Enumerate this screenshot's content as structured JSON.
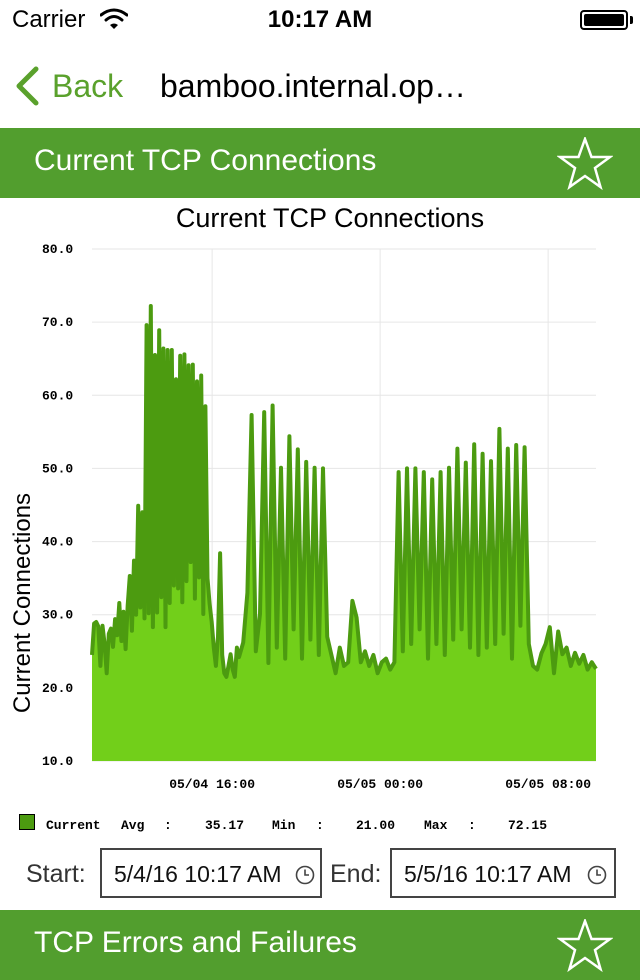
{
  "status": {
    "carrier": "Carrier",
    "time": "10:17 AM"
  },
  "nav": {
    "back_label": "Back",
    "title": "bamboo.internal.op…"
  },
  "section1": {
    "title": "Current TCP Connections"
  },
  "section2": {
    "title": "TCP Errors and Failures"
  },
  "chart_data": {
    "type": "area",
    "title": "Current TCP Connections",
    "xlabel": "",
    "ylabel": "Current Connections",
    "ylim": [
      10,
      80
    ],
    "yticks": [
      10,
      20,
      30,
      40,
      50,
      60,
      70,
      80
    ],
    "ytick_labels": [
      "10.0",
      "20.0",
      "30.0",
      "40.0",
      "50.0",
      "60.0",
      "70.0",
      "80.0"
    ],
    "xlim": [
      "05/04 10:17",
      "05/05 10:17"
    ],
    "xticks": [
      {
        "label": "05/04 16:00",
        "hours": 5.72
      },
      {
        "label": "05/05 00:00",
        "hours": 13.72
      },
      {
        "label": "05/05 08:00",
        "hours": 21.72
      }
    ],
    "grid": true,
    "colors": {
      "fill": "#72cf1a",
      "line": "#4c9b10",
      "grid": "#e6e6e6"
    },
    "series": [
      {
        "name": "Current",
        "x_hours": [
          0.0,
          0.1,
          0.2,
          0.3,
          0.4,
          0.5,
          0.6,
          0.7,
          0.8,
          0.9,
          1.0,
          1.1,
          1.2,
          1.3,
          1.4,
          1.5,
          1.6,
          1.7,
          1.8,
          1.9,
          2.0,
          2.1,
          2.2,
          2.3,
          2.4,
          2.5,
          2.6,
          2.7,
          2.8,
          2.9,
          3.0,
          3.1,
          3.2,
          3.3,
          3.4,
          3.5,
          3.6,
          3.7,
          3.8,
          3.9,
          4.0,
          4.1,
          4.2,
          4.3,
          4.4,
          4.5,
          4.6,
          4.7,
          4.8,
          4.9,
          5.0,
          5.1,
          5.2,
          5.3,
          5.4,
          5.5,
          5.6,
          5.7,
          5.8,
          5.9,
          6.0,
          6.1,
          6.2,
          6.3,
          6.4,
          6.5,
          6.6,
          6.7,
          6.8,
          6.9,
          7.0,
          7.2,
          7.4,
          7.6,
          7.8,
          8.0,
          8.2,
          8.4,
          8.6,
          8.8,
          9.0,
          9.2,
          9.4,
          9.6,
          9.8,
          10.0,
          10.2,
          10.4,
          10.6,
          10.8,
          11.0,
          11.2,
          11.4,
          11.6,
          11.8,
          12.0,
          12.2,
          12.4,
          12.6,
          12.8,
          13.0,
          13.2,
          13.4,
          13.6,
          13.8,
          14.0,
          14.2,
          14.4,
          14.6,
          14.8,
          15.0,
          15.2,
          15.4,
          15.6,
          15.8,
          16.0,
          16.2,
          16.4,
          16.6,
          16.8,
          17.0,
          17.2,
          17.4,
          17.6,
          17.8,
          18.0,
          18.2,
          18.4,
          18.6,
          18.8,
          19.0,
          19.2,
          19.4,
          19.6,
          19.8,
          20.0,
          20.2,
          20.4,
          20.6,
          20.8,
          21.0,
          21.2,
          21.4,
          21.6,
          21.8,
          22.0,
          22.2,
          22.4,
          22.6,
          22.8,
          23.0,
          23.2,
          23.4,
          23.6,
          23.8,
          24.0
        ],
        "values": [
          24.5,
          28.8,
          29.0,
          28.4,
          23.0,
          28.5,
          26.0,
          22.0,
          27.4,
          28.1,
          25.6,
          29.4,
          27.2,
          31.6,
          26.4,
          30.4,
          25.3,
          31.3,
          35.3,
          27.8,
          37.4,
          30.0,
          44.9,
          31.0,
          44.0,
          29.5,
          69.6,
          30.2,
          72.2,
          28.3,
          65.5,
          30.3,
          68.9,
          32.4,
          66.4,
          28.3,
          66.2,
          31.6,
          66.2,
          34.0,
          62.2,
          33.6,
          65.4,
          31.7,
          65.6,
          34.6,
          64.1,
          37.2,
          64.2,
          32.2,
          61.9,
          35.1,
          62.7,
          30.1,
          58.5,
          35.0,
          31.5,
          29.0,
          25.5,
          23.0,
          27.0,
          38.4,
          24.5,
          22.0,
          21.5,
          23.0,
          24.6,
          22.5,
          21.5,
          25.5,
          24.2,
          26.2,
          33.0,
          57.3,
          25.0,
          30.1,
          57.7,
          23.4,
          58.6,
          25.5,
          50.1,
          24.0,
          54.4,
          28.0,
          52.6,
          24.0,
          50.9,
          26.6,
          50.1,
          24.5,
          50.0,
          27.0,
          24.5,
          22.0,
          25.5,
          23.0,
          23.5,
          31.9,
          29.6,
          23.5,
          25.0,
          23.0,
          24.5,
          22.0,
          23.5,
          24.0,
          22.5,
          23.5,
          49.5,
          25.0,
          50.0,
          26.0,
          50.0,
          28.0,
          49.5,
          24.0,
          48.5,
          26.0,
          49.5,
          24.5,
          50.1,
          26.6,
          52.7,
          28.0,
          50.8,
          25.5,
          53.3,
          24.5,
          52.0,
          25.5,
          51.0,
          26.0,
          55.4,
          27.4,
          52.7,
          24.0,
          53.2,
          28.5,
          52.9,
          26.0,
          23.0,
          22.5,
          24.7,
          26.0,
          28.3,
          22.0,
          27.7,
          24.6,
          25.5,
          23.0,
          24.8,
          23.3,
          24.5,
          22.5,
          23.5,
          22.6
        ]
      }
    ],
    "stats": {
      "series_label": "Current",
      "avg_label": "Avg",
      "avg": "35.17",
      "min_label": "Min",
      "min": "21.00",
      "max_label": "Max",
      "max": "72.15"
    }
  },
  "range": {
    "start_label": "Start:",
    "start_value": "5/4/16 10:17 AM",
    "end_label": "End:",
    "end_value": "5/5/16 10:17 AM"
  }
}
